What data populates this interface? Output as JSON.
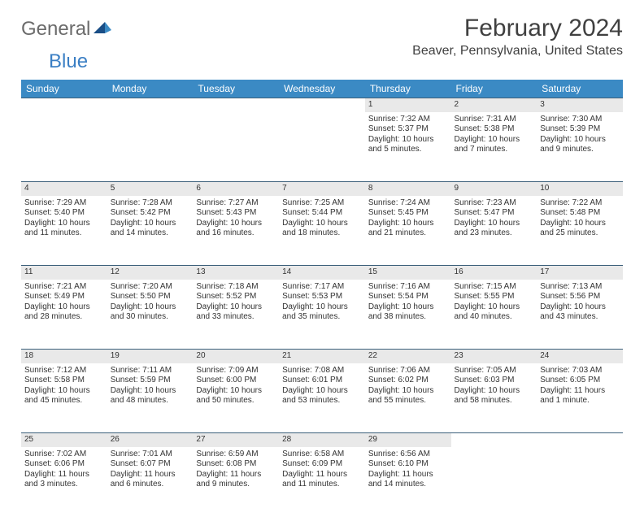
{
  "logo": {
    "textGeneral": "General",
    "textBlue": "Blue"
  },
  "title": "February 2024",
  "location": "Beaver, Pennsylvania, United States",
  "colors": {
    "header_bg": "#3b8ac4",
    "header_text": "#ffffff",
    "border": "#3b5f7a",
    "daynum_bg": "#e9e9e9",
    "body_text": "#333333",
    "title_text": "#404040",
    "logo_general": "#6b6b6b",
    "logo_blue": "#3b7fc4",
    "background": "#ffffff"
  },
  "weekdays": [
    "Sunday",
    "Monday",
    "Tuesday",
    "Wednesday",
    "Thursday",
    "Friday",
    "Saturday"
  ],
  "weeks": [
    [
      null,
      null,
      null,
      null,
      {
        "d": "1",
        "sr": "Sunrise: 7:32 AM",
        "ss": "Sunset: 5:37 PM",
        "dl1": "Daylight: 10 hours",
        "dl2": "and 5 minutes."
      },
      {
        "d": "2",
        "sr": "Sunrise: 7:31 AM",
        "ss": "Sunset: 5:38 PM",
        "dl1": "Daylight: 10 hours",
        "dl2": "and 7 minutes."
      },
      {
        "d": "3",
        "sr": "Sunrise: 7:30 AM",
        "ss": "Sunset: 5:39 PM",
        "dl1": "Daylight: 10 hours",
        "dl2": "and 9 minutes."
      }
    ],
    [
      {
        "d": "4",
        "sr": "Sunrise: 7:29 AM",
        "ss": "Sunset: 5:40 PM",
        "dl1": "Daylight: 10 hours",
        "dl2": "and 11 minutes."
      },
      {
        "d": "5",
        "sr": "Sunrise: 7:28 AM",
        "ss": "Sunset: 5:42 PM",
        "dl1": "Daylight: 10 hours",
        "dl2": "and 14 minutes."
      },
      {
        "d": "6",
        "sr": "Sunrise: 7:27 AM",
        "ss": "Sunset: 5:43 PM",
        "dl1": "Daylight: 10 hours",
        "dl2": "and 16 minutes."
      },
      {
        "d": "7",
        "sr": "Sunrise: 7:25 AM",
        "ss": "Sunset: 5:44 PM",
        "dl1": "Daylight: 10 hours",
        "dl2": "and 18 minutes."
      },
      {
        "d": "8",
        "sr": "Sunrise: 7:24 AM",
        "ss": "Sunset: 5:45 PM",
        "dl1": "Daylight: 10 hours",
        "dl2": "and 21 minutes."
      },
      {
        "d": "9",
        "sr": "Sunrise: 7:23 AM",
        "ss": "Sunset: 5:47 PM",
        "dl1": "Daylight: 10 hours",
        "dl2": "and 23 minutes."
      },
      {
        "d": "10",
        "sr": "Sunrise: 7:22 AM",
        "ss": "Sunset: 5:48 PM",
        "dl1": "Daylight: 10 hours",
        "dl2": "and 25 minutes."
      }
    ],
    [
      {
        "d": "11",
        "sr": "Sunrise: 7:21 AM",
        "ss": "Sunset: 5:49 PM",
        "dl1": "Daylight: 10 hours",
        "dl2": "and 28 minutes."
      },
      {
        "d": "12",
        "sr": "Sunrise: 7:20 AM",
        "ss": "Sunset: 5:50 PM",
        "dl1": "Daylight: 10 hours",
        "dl2": "and 30 minutes."
      },
      {
        "d": "13",
        "sr": "Sunrise: 7:18 AM",
        "ss": "Sunset: 5:52 PM",
        "dl1": "Daylight: 10 hours",
        "dl2": "and 33 minutes."
      },
      {
        "d": "14",
        "sr": "Sunrise: 7:17 AM",
        "ss": "Sunset: 5:53 PM",
        "dl1": "Daylight: 10 hours",
        "dl2": "and 35 minutes."
      },
      {
        "d": "15",
        "sr": "Sunrise: 7:16 AM",
        "ss": "Sunset: 5:54 PM",
        "dl1": "Daylight: 10 hours",
        "dl2": "and 38 minutes."
      },
      {
        "d": "16",
        "sr": "Sunrise: 7:15 AM",
        "ss": "Sunset: 5:55 PM",
        "dl1": "Daylight: 10 hours",
        "dl2": "and 40 minutes."
      },
      {
        "d": "17",
        "sr": "Sunrise: 7:13 AM",
        "ss": "Sunset: 5:56 PM",
        "dl1": "Daylight: 10 hours",
        "dl2": "and 43 minutes."
      }
    ],
    [
      {
        "d": "18",
        "sr": "Sunrise: 7:12 AM",
        "ss": "Sunset: 5:58 PM",
        "dl1": "Daylight: 10 hours",
        "dl2": "and 45 minutes."
      },
      {
        "d": "19",
        "sr": "Sunrise: 7:11 AM",
        "ss": "Sunset: 5:59 PM",
        "dl1": "Daylight: 10 hours",
        "dl2": "and 48 minutes."
      },
      {
        "d": "20",
        "sr": "Sunrise: 7:09 AM",
        "ss": "Sunset: 6:00 PM",
        "dl1": "Daylight: 10 hours",
        "dl2": "and 50 minutes."
      },
      {
        "d": "21",
        "sr": "Sunrise: 7:08 AM",
        "ss": "Sunset: 6:01 PM",
        "dl1": "Daylight: 10 hours",
        "dl2": "and 53 minutes."
      },
      {
        "d": "22",
        "sr": "Sunrise: 7:06 AM",
        "ss": "Sunset: 6:02 PM",
        "dl1": "Daylight: 10 hours",
        "dl2": "and 55 minutes."
      },
      {
        "d": "23",
        "sr": "Sunrise: 7:05 AM",
        "ss": "Sunset: 6:03 PM",
        "dl1": "Daylight: 10 hours",
        "dl2": "and 58 minutes."
      },
      {
        "d": "24",
        "sr": "Sunrise: 7:03 AM",
        "ss": "Sunset: 6:05 PM",
        "dl1": "Daylight: 11 hours",
        "dl2": "and 1 minute."
      }
    ],
    [
      {
        "d": "25",
        "sr": "Sunrise: 7:02 AM",
        "ss": "Sunset: 6:06 PM",
        "dl1": "Daylight: 11 hours",
        "dl2": "and 3 minutes."
      },
      {
        "d": "26",
        "sr": "Sunrise: 7:01 AM",
        "ss": "Sunset: 6:07 PM",
        "dl1": "Daylight: 11 hours",
        "dl2": "and 6 minutes."
      },
      {
        "d": "27",
        "sr": "Sunrise: 6:59 AM",
        "ss": "Sunset: 6:08 PM",
        "dl1": "Daylight: 11 hours",
        "dl2": "and 9 minutes."
      },
      {
        "d": "28",
        "sr": "Sunrise: 6:58 AM",
        "ss": "Sunset: 6:09 PM",
        "dl1": "Daylight: 11 hours",
        "dl2": "and 11 minutes."
      },
      {
        "d": "29",
        "sr": "Sunrise: 6:56 AM",
        "ss": "Sunset: 6:10 PM",
        "dl1": "Daylight: 11 hours",
        "dl2": "and 14 minutes."
      },
      null,
      null
    ]
  ]
}
